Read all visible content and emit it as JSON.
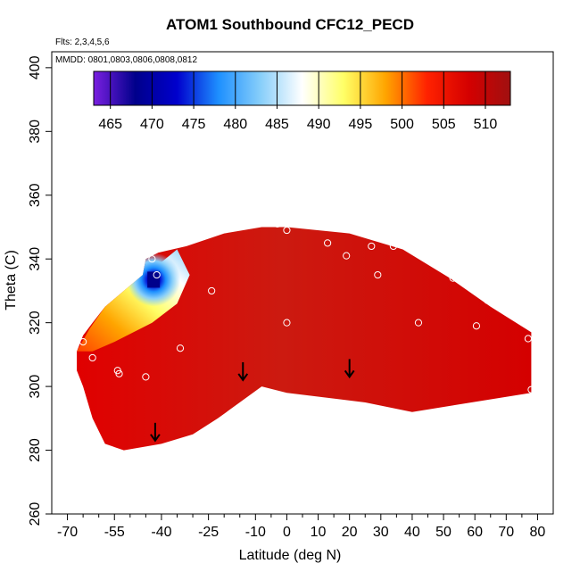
{
  "chart_data": {
    "type": "heatmap",
    "title": "ATOM1 Southbound CFC12_PECD",
    "flights_note": "Flts: 2,3,4,5,6",
    "mmdd_note": "MMDD: 0801,0803,0806,0808,0812",
    "xlabel": "Latitude (deg N)",
    "ylabel": "Theta (C)",
    "xlim": [
      -75,
      85
    ],
    "ylim": [
      260,
      405
    ],
    "x_ticks": [
      -70,
      -55,
      -40,
      -25,
      -10,
      0,
      10,
      20,
      30,
      40,
      50,
      60,
      70,
      80
    ],
    "x_tick_labels": [
      "-70",
      "-55",
      "-40",
      "-25",
      "-10",
      "0",
      "10",
      "20",
      "30",
      "40",
      "50",
      "60",
      "70",
      "80"
    ],
    "x_minor_ticks": [
      -65,
      -60,
      -50,
      -45,
      -35,
      -30,
      -20,
      -15,
      -5,
      5,
      15,
      25,
      35,
      45,
      55,
      65,
      75
    ],
    "y_ticks": [
      260,
      280,
      300,
      320,
      340,
      360,
      380,
      400
    ],
    "y_tick_labels": [
      "260",
      "280",
      "300",
      "320",
      "340",
      "360",
      "380",
      "400"
    ],
    "colorbar": {
      "ticks": [
        465,
        470,
        475,
        480,
        485,
        490,
        495,
        500,
        505,
        510
      ],
      "tick_labels": [
        "465",
        "470",
        "475",
        "480",
        "485",
        "490",
        "495",
        "500",
        "505",
        "510"
      ],
      "range": [
        463,
        513
      ],
      "colors": [
        "#7a1fe0",
        "#00008b",
        "#0000cd",
        "#1e90ff",
        "#87cefa",
        "#ffffff",
        "#ffff66",
        "#ffa500",
        "#ff2200",
        "#d40000",
        "#a01010"
      ]
    },
    "region_outline": [
      [
        -67,
        311
      ],
      [
        -65,
        316
      ],
      [
        -62,
        320
      ],
      [
        -58,
        325
      ],
      [
        -52,
        330
      ],
      [
        -46,
        335
      ],
      [
        -45,
        340
      ],
      [
        -41,
        342
      ],
      [
        -32,
        344
      ],
      [
        -20,
        348
      ],
      [
        -8,
        350
      ],
      [
        0,
        350
      ],
      [
        20,
        348
      ],
      [
        37,
        343
      ],
      [
        52,
        334
      ],
      [
        65,
        325
      ],
      [
        78,
        317
      ],
      [
        78,
        298
      ],
      [
        40,
        292
      ],
      [
        25,
        295
      ],
      [
        0,
        298
      ],
      [
        -8,
        300
      ],
      [
        -22,
        290
      ],
      [
        -30,
        285
      ],
      [
        -40,
        282
      ],
      [
        -52,
        280
      ],
      [
        -58,
        282
      ],
      [
        -62,
        290
      ],
      [
        -65,
        300
      ],
      [
        -67,
        305
      ]
    ],
    "cold_core": {
      "center": [
        -42.5,
        333.5
      ],
      "value": 469
    },
    "gradient_band": [
      [
        -67,
        311
      ],
      [
        -63,
        318
      ],
      [
        -58,
        325
      ],
      [
        -51,
        331
      ],
      [
        -46,
        336
      ],
      [
        -40,
        339
      ],
      [
        -35,
        343
      ],
      [
        -31,
        335
      ],
      [
        -35,
        326
      ],
      [
        -43,
        320
      ],
      [
        -55,
        314
      ],
      [
        -62,
        311
      ]
    ],
    "observations": [
      {
        "lat": -43,
        "theta": 340
      },
      {
        "lat": -41.5,
        "theta": 335
      },
      {
        "lat": -24,
        "theta": 330
      },
      {
        "lat": -34,
        "theta": 312
      },
      {
        "lat": -65,
        "theta": 314
      },
      {
        "lat": -62,
        "theta": 309
      },
      {
        "lat": -54,
        "theta": 305
      },
      {
        "lat": -53.5,
        "theta": 304
      },
      {
        "lat": -45,
        "theta": 303
      },
      {
        "lat": -3,
        "theta": 351
      },
      {
        "lat": 0,
        "theta": 349
      },
      {
        "lat": 13,
        "theta": 345
      },
      {
        "lat": 19,
        "theta": 341
      },
      {
        "lat": 27,
        "theta": 344
      },
      {
        "lat": 29,
        "theta": 335
      },
      {
        "lat": 34,
        "theta": 344
      },
      {
        "lat": 0,
        "theta": 320
      },
      {
        "lat": 42,
        "theta": 320
      },
      {
        "lat": 53,
        "theta": 334
      },
      {
        "lat": 60.5,
        "theta": 319
      },
      {
        "lat": 64,
        "theta": 327
      },
      {
        "lat": 77,
        "theta": 315
      },
      {
        "lat": 78,
        "theta": 299
      }
    ],
    "arrows": [
      {
        "lat": -42,
        "theta": 283
      },
      {
        "lat": -14,
        "theta": 302
      },
      {
        "lat": 20,
        "theta": 303
      }
    ]
  }
}
